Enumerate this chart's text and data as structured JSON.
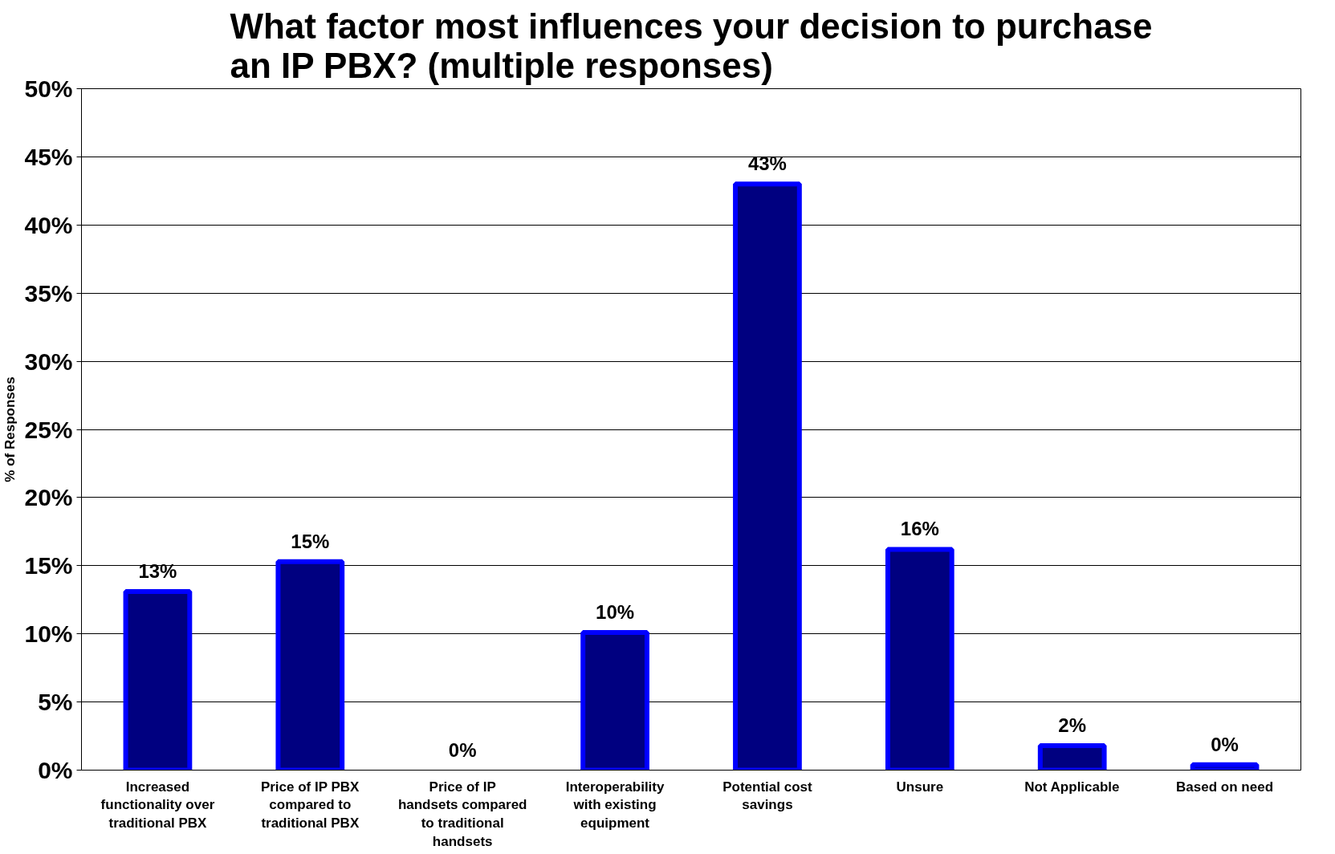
{
  "chart_data": {
    "type": "bar",
    "title": "What factor most influences your decision to purchase an IP PBX? (multiple responses)",
    "ylabel": "% of Responses",
    "categories": [
      "Increased functionality over traditional PBX",
      "Price of IP PBX compared to traditional PBX",
      "Price of IP handsets compared to traditional handsets",
      "Interoperability with existing equipment",
      "Potential cost savings",
      "Unsure",
      "Not Applicable",
      "Based on need"
    ],
    "values": [
      13.1,
      15.3,
      0,
      10.1,
      43,
      16.2,
      1.8,
      0.4
    ],
    "value_labels": [
      "13%",
      "15%",
      "0%",
      "10%",
      "43%",
      "16%",
      "2%",
      "0%"
    ],
    "color": "#000080",
    "ylim": [
      0,
      50
    ],
    "yticks": [
      {
        "value": 0,
        "label": "0%"
      },
      {
        "value": 5,
        "label": "5%"
      },
      {
        "value": 10,
        "label": "10%"
      },
      {
        "value": 15,
        "label": "15%"
      },
      {
        "value": 20,
        "label": "20%"
      },
      {
        "value": 25,
        "label": "25%"
      },
      {
        "value": 30,
        "label": "30%"
      },
      {
        "value": 35,
        "label": "35%"
      },
      {
        "value": 40,
        "label": "40%"
      },
      {
        "value": 45,
        "label": "45%"
      },
      {
        "value": 50,
        "label": "50%"
      }
    ],
    "grid": "y"
  }
}
